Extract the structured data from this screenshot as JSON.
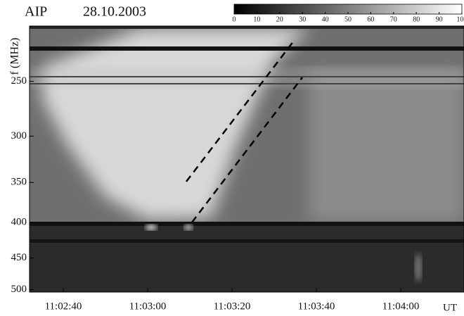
{
  "chart_data": {
    "type": "spectrogram",
    "title": "AIP",
    "date": "28.10.2003",
    "y_label": "f (MHz)",
    "x_label": "UT",
    "ylim": [
      208,
      504
    ],
    "yticks": [
      250,
      300,
      350,
      400,
      450,
      500
    ],
    "log_y": true,
    "y_inverted": true,
    "xlim": [
      "11:02:32",
      "11:04:15"
    ],
    "xticks": [
      "11:02:40",
      "11:03:00",
      "11:03:20",
      "11:03:40",
      "11:04:00"
    ],
    "colorbar": {
      "lim": [
        0,
        100
      ],
      "ticks": [
        0,
        10,
        20,
        30,
        40,
        50,
        60,
        70,
        80,
        90,
        100
      ],
      "colors": [
        "#000000",
        "#ffffff"
      ]
    }
  }
}
